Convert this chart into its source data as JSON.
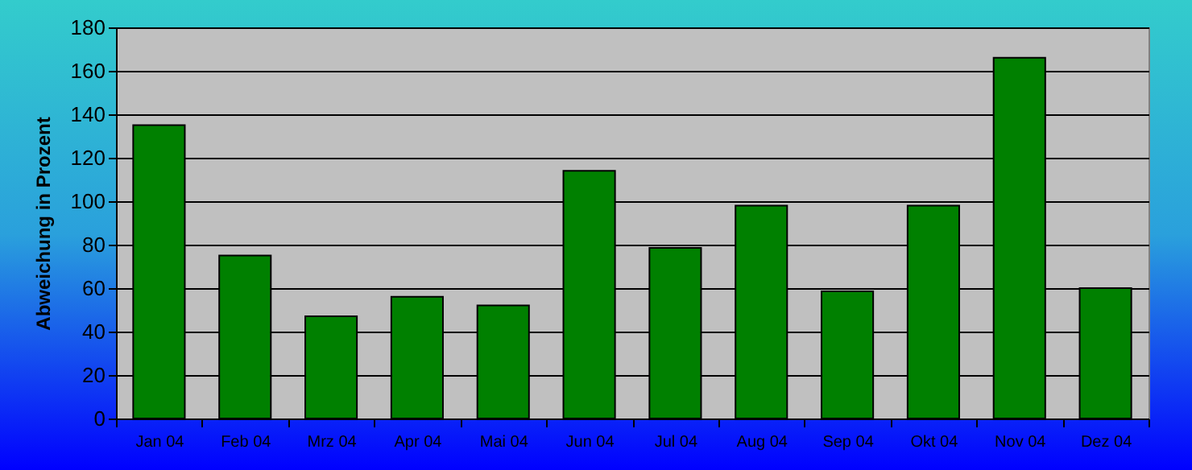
{
  "chart_data": {
    "type": "bar",
    "ylabel": "Abweichung in Prozent",
    "categories": [
      "Jan 04",
      "Feb 04",
      "Mrz 04",
      "Apr 04",
      "Mai 04",
      "Jun 04",
      "Jul 04",
      "Aug 04",
      "Sep 04",
      "Okt 04",
      "Nov 04",
      "Dez 04"
    ],
    "values": [
      135,
      75,
      47,
      56,
      52,
      114,
      78.5,
      98,
      58.5,
      98,
      166,
      60
    ],
    "color": "#008000",
    "ylim": [
      0,
      180
    ],
    "yticks": [
      0,
      20,
      40,
      60,
      80,
      100,
      120,
      140,
      160,
      180
    ],
    "grid": "y"
  }
}
